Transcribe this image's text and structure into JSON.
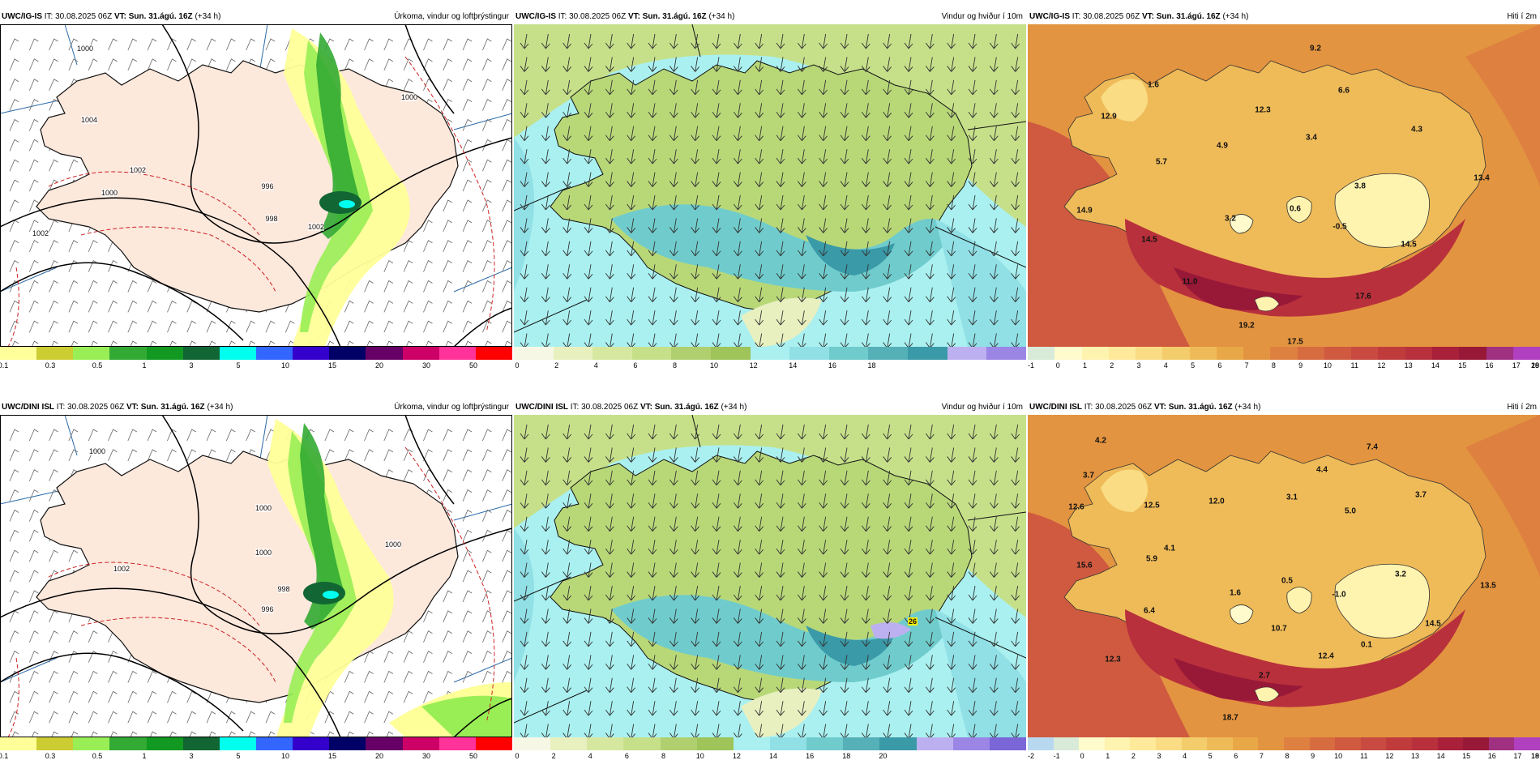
{
  "panels": [
    {
      "header_model": "UWC/IG-IS",
      "it_label": "IT:",
      "it_value": "30.08.2025 06Z",
      "vt_label": "VT:",
      "vt_value": "Sun. 31.ágú. 16Z",
      "lead": "(+34 h)",
      "title": "Úrkoma, vindur og loftþrýstingur",
      "colorbar": {
        "colors": [
          "#ffff99",
          "#cccc33",
          "#99ee55",
          "#33aa33",
          "#119922",
          "#116633",
          "#00ffee",
          "#3366ff",
          "#3300cc",
          "#000066",
          "#660066",
          "#cc0066",
          "#ff3399",
          "#ff0000"
        ],
        "ticks": [
          "0.1",
          "0.3",
          "0.5",
          "1",
          "3",
          "5",
          "10",
          "15",
          "20",
          "30",
          "50"
        ]
      },
      "isobar_labels": [
        "1000",
        "1004",
        "1002",
        "1000",
        "996",
        "998",
        "1002",
        "1000",
        "1002"
      ]
    },
    {
      "header_model": "UWC/IG-IS",
      "it_label": "IT:",
      "it_value": "30.08.2025 06Z",
      "vt_label": "VT:",
      "vt_value": "Sun. 31.ágú. 16Z",
      "lead": "(+34 h)",
      "title": "Vindur og hviður í 10m",
      "colorbar": {
        "colors": [
          "#f7f7e6",
          "#e8f0c0",
          "#d6e8a0",
          "#c6e08a",
          "#b0d070",
          "#9ec45a",
          "#aaf0f0",
          "#90e0e6",
          "#70cccc",
          "#55b0b8",
          "#3a9aa8",
          "#bdb0f0",
          "#9b86e6"
        ],
        "ticks": [
          "0",
          "2",
          "4",
          "6",
          "8",
          "10",
          "12",
          "14",
          "16",
          "18"
        ]
      }
    },
    {
      "header_model": "UWC/IG-IS",
      "it_label": "IT:",
      "it_value": "30.08.2025 06Z",
      "vt_label": "VT:",
      "vt_value": "Sun. 31.ágú. 16Z",
      "lead": "(+34 h)",
      "title": "Hiti í 2m",
      "colorbar": {
        "colors": [
          "#d8ead8",
          "#fffbcc",
          "#fff3b0",
          "#ffe99a",
          "#f9dc84",
          "#f3cc6c",
          "#efbb58",
          "#e9a848",
          "#e39440",
          "#dd8040",
          "#d66c40",
          "#cf5a40",
          "#c84a40",
          "#c03c3c",
          "#b8303c",
          "#a8203a",
          "#981838",
          "#a03080",
          "#b040c0"
        ],
        "ticks": [
          "-1",
          "0",
          "1",
          "2",
          "3",
          "4",
          "5",
          "6",
          "7",
          "8",
          "9",
          "10",
          "11",
          "12",
          "13",
          "14",
          "15",
          "16",
          "17",
          "18",
          "19",
          "20"
        ]
      },
      "temp_labels": [
        "9.2",
        "1.6",
        "6.6",
        "12.9",
        "12.3",
        "3.4",
        "4.3",
        "4.9",
        "5.7",
        "13.4",
        "3.8",
        "14.9",
        "0.6",
        "3.2",
        "-0.5",
        "14.5",
        "14.5",
        "11.0",
        "17.6",
        "19.2",
        "17.5"
      ]
    },
    {
      "header_model": "UWC/DINI ISL",
      "it_label": "IT:",
      "it_value": "30.08.2025 06Z",
      "vt_label": "VT:",
      "vt_value": "Sun. 31.ágú. 16Z",
      "lead": "(+34 h)",
      "title": "Úrkoma, vindur og loftþrýstingur",
      "colorbar": {
        "colors": [
          "#ffff99",
          "#cccc33",
          "#99ee55",
          "#33aa33",
          "#119922",
          "#116633",
          "#00ffee",
          "#3366ff",
          "#3300cc",
          "#000066",
          "#660066",
          "#cc0066",
          "#ff3399",
          "#ff0000"
        ],
        "ticks": [
          "0.1",
          "0.3",
          "0.5",
          "1",
          "3",
          "5",
          "10",
          "15",
          "20",
          "30",
          "50"
        ]
      },
      "isobar_labels": [
        "1000",
        "1002",
        "1000",
        "1000",
        "998",
        "996",
        "1000"
      ]
    },
    {
      "header_model": "UWC/DINI ISL",
      "it_label": "IT:",
      "it_value": "30.08.2025 06Z",
      "vt_label": "VT:",
      "vt_value": "Sun. 31.ágú. 16Z",
      "lead": "(+34 h)",
      "title": "Vindur og hviður í 10m",
      "colorbar": {
        "colors": [
          "#f7f7e6",
          "#e8f0c0",
          "#d6e8a0",
          "#c6e08a",
          "#b0d070",
          "#9ec45a",
          "#aaf0f0",
          "#90e0e6",
          "#70cccc",
          "#55b0b8",
          "#3a9aa8",
          "#bdb0f0",
          "#9b86e6",
          "#7a66d6"
        ],
        "ticks": [
          "0",
          "2",
          "4",
          "6",
          "8",
          "10",
          "12",
          "14",
          "16",
          "18",
          "20"
        ]
      },
      "gust_label": "26"
    },
    {
      "header_model": "UWC/DINI ISL",
      "it_label": "IT:",
      "it_value": "30.08.2025 06Z",
      "vt_label": "VT:",
      "vt_value": "Sun. 31.ágú. 16Z",
      "lead": "(+34 h)",
      "title": "Hiti í 2m",
      "colorbar": {
        "colors": [
          "#b8d8f0",
          "#d8ead8",
          "#fffbcc",
          "#fff3b0",
          "#ffe99a",
          "#f9dc84",
          "#f3cc6c",
          "#efbb58",
          "#e9a848",
          "#e39440",
          "#dd8040",
          "#d66c40",
          "#cf5a40",
          "#c84a40",
          "#c03c3c",
          "#b8303c",
          "#a8203a",
          "#981838",
          "#a03080",
          "#b040c0"
        ],
        "ticks": [
          "-2",
          "-1",
          "0",
          "1",
          "2",
          "3",
          "4",
          "5",
          "6",
          "7",
          "8",
          "9",
          "10",
          "11",
          "12",
          "13",
          "14",
          "15",
          "16",
          "17",
          "18",
          "19"
        ]
      },
      "temp_labels": [
        "4.2",
        "7.4",
        "3.7",
        "4.4",
        "12.6",
        "12.5",
        "12.0",
        "3.1",
        "3.7",
        "5.0",
        "5.9",
        "4.1",
        "15.6",
        "1.6",
        "0.5",
        "3.2",
        "13.5",
        "6.4",
        "-1.0",
        "14.5",
        "10.7",
        "12.3",
        "12.4",
        "0.1",
        "2.7",
        "18.7"
      ]
    }
  ]
}
